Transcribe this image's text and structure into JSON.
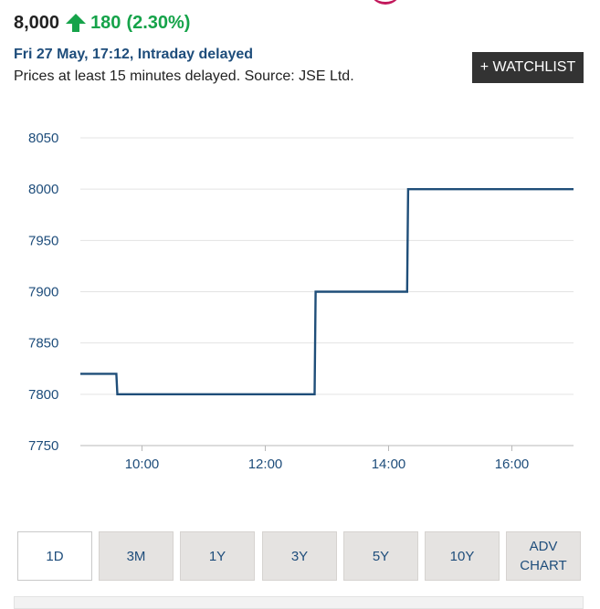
{
  "quote": {
    "price": "8,000",
    "change": "180",
    "change_pct": "(2.30%)",
    "direction": "up",
    "up_color": "#16a34a"
  },
  "meta": {
    "timestamp": "Fri 27 May, 17:12, Intraday delayed",
    "source_note": "Prices at least 15 minutes delayed. Source: JSE Ltd."
  },
  "actions": {
    "watchlist_label": "+ WATCHLIST"
  },
  "chart_data": {
    "type": "line",
    "step": true,
    "grid": true,
    "line_color": "#1f4e79",
    "y_ticks": [
      8050,
      8000,
      7950,
      7900,
      7850,
      7800,
      7750
    ],
    "x_ticks": [
      "10:00",
      "12:00",
      "14:00",
      "16:00"
    ],
    "ylim": [
      7750,
      8050
    ],
    "xlim": [
      "09:00",
      "17:00"
    ],
    "series": [
      {
        "points": [
          {
            "x": "09:00",
            "y": 7820
          },
          {
            "x": "09:35",
            "y": 7820
          },
          {
            "x": "09:36",
            "y": 7800
          },
          {
            "x": "12:48",
            "y": 7800
          },
          {
            "x": "12:49",
            "y": 7900
          },
          {
            "x": "14:18",
            "y": 7900
          },
          {
            "x": "14:19",
            "y": 8000
          },
          {
            "x": "17:00",
            "y": 8000
          }
        ]
      }
    ]
  },
  "ranges": {
    "active": "1D",
    "items": [
      {
        "label": "1D"
      },
      {
        "label": "3M"
      },
      {
        "label": "1Y"
      },
      {
        "label": "3Y"
      },
      {
        "label": "5Y"
      },
      {
        "label": "10Y"
      },
      {
        "label": "ADV CHART"
      }
    ]
  }
}
